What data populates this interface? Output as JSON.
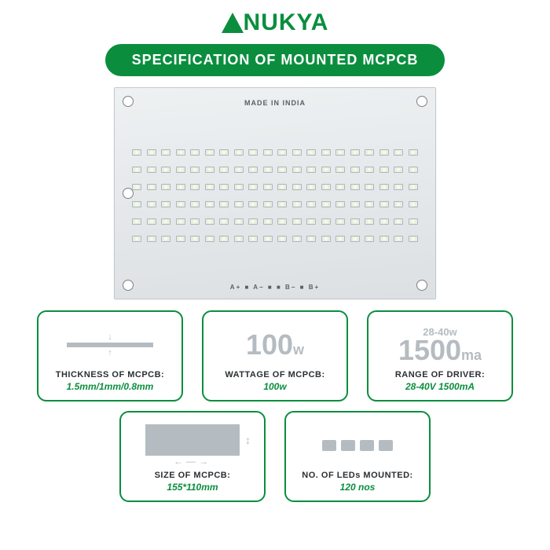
{
  "brand": {
    "name": "NUKYA"
  },
  "banner": "SPECIFICATION OF MOUNTED MCPCB",
  "pcb": {
    "top_label": "MADE IN INDIA",
    "bottom_label": "A+ ■  A− ■   ■ B−  ■ B+",
    "rows": 6,
    "cols": 20
  },
  "specs": {
    "thickness": {
      "label": "THICKNESS OF MCPCB:",
      "value": "1.5mm/1mm/0.8mm"
    },
    "wattage": {
      "visual_value": "100",
      "visual_unit": "w",
      "label": "WATTAGE OF MCPCB:",
      "value": "100w"
    },
    "driver": {
      "top": "28-40w",
      "visual_value": "1500",
      "visual_unit": "ma",
      "label": "RANGE OF DRIVER:",
      "value": "28-40V 1500mA"
    },
    "size": {
      "label": "SIZE OF MCPCB:",
      "value": "155*110mm"
    },
    "leds": {
      "label": "NO. OF LEDs MOUNTED:",
      "value": "120 nos"
    }
  },
  "colors": {
    "brand_green": "#0a8e3e",
    "muted_gray": "#b5bcc1",
    "pcb_bg_light": "#eef1f2",
    "pcb_bg_dark": "#dce0e3"
  }
}
